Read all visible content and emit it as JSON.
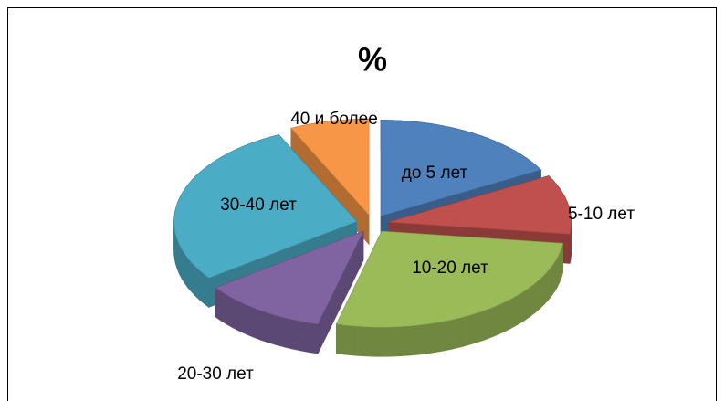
{
  "chart_data": {
    "type": "pie",
    "title": "%",
    "categories": [
      "до 5 лет",
      "5-10 лет",
      "10-20 лет",
      "20-30 лет",
      "30-40 лет",
      "40 и более"
    ],
    "values": [
      17,
      10,
      27,
      11,
      28,
      7
    ],
    "colors": [
      "#4f81bd",
      "#c0504d",
      "#9bbb59",
      "#8064a2",
      "#4bacc6",
      "#f79646"
    ]
  }
}
